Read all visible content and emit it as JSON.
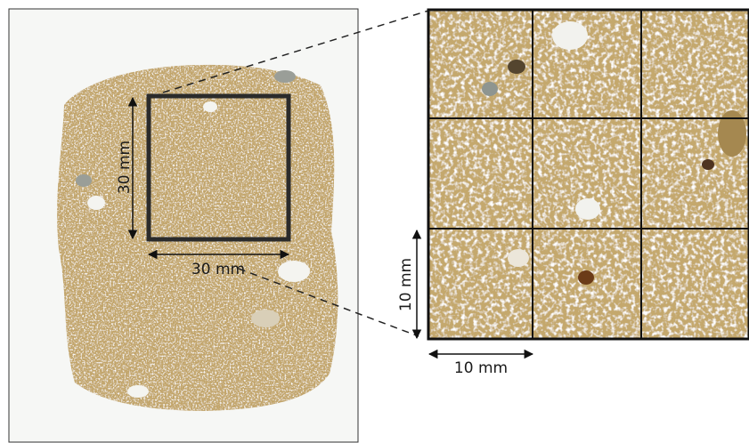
{
  "figure": {
    "overview": {
      "height_label": "30 mm",
      "width_label": "30 mm"
    },
    "detail": {
      "height_label": "10 mm",
      "width_label": "10 mm"
    }
  }
}
